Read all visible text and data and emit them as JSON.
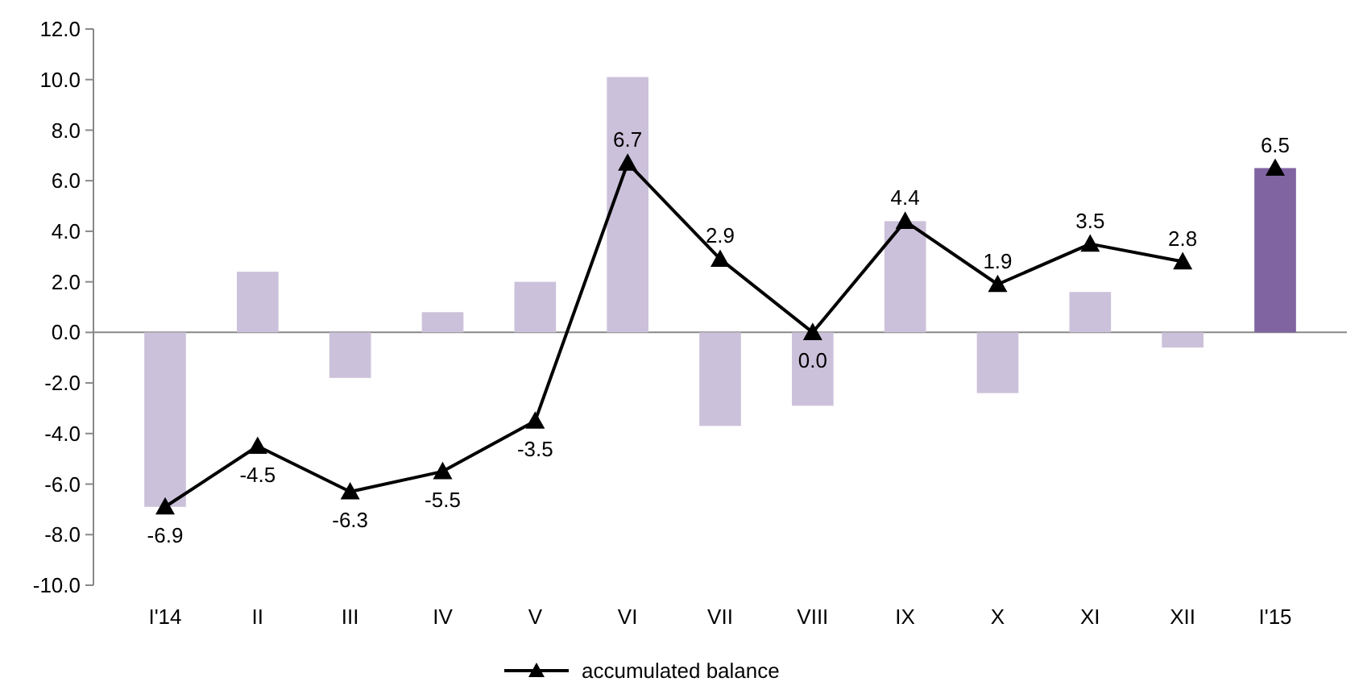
{
  "chart_data": {
    "type": "bar",
    "categories": [
      "I'14",
      "II",
      "III",
      "IV",
      "V",
      "VI",
      "VII",
      "VIII",
      "IX",
      "X",
      "XI",
      "XII",
      "I'15"
    ],
    "series": [
      {
        "colors": [
          "#ccc1da",
          "#ccc1da",
          "#ccc1da",
          "#ccc1da",
          "#ccc1da",
          "#ccc1da",
          "#ccc1da",
          "#ccc1da",
          "#ccc1da",
          "#ccc1da",
          "#ccc1da",
          "#ccc1da",
          "#8064a2"
        ],
        "values": [
          -6.9,
          2.4,
          -1.8,
          0.8,
          2.0,
          10.1,
          -3.7,
          -2.9,
          4.4,
          -2.4,
          1.6,
          -0.6,
          6.5
        ]
      },
      {
        "type": "line",
        "name": "accumulated balance",
        "color": "#000000",
        "marker": "triangle",
        "values": [
          -6.9,
          -4.5,
          -6.3,
          -5.5,
          -3.5,
          6.7,
          2.9,
          0.0,
          4.4,
          1.9,
          3.5,
          2.8,
          null
        ],
        "value_labels": [
          "-6.9",
          "-4.5",
          "-6.3",
          "-5.5",
          "-3.5",
          "6.7",
          "2.9",
          "0.0",
          "4.4",
          "1.9",
          "3.5",
          "2.8",
          null
        ]
      },
      {
        "type": "scatter",
        "color": "#000000",
        "marker": "triangle",
        "values": [
          null,
          null,
          null,
          null,
          null,
          null,
          null,
          null,
          null,
          null,
          null,
          null,
          6.5
        ],
        "value_labels": [
          null,
          null,
          null,
          null,
          null,
          null,
          null,
          null,
          null,
          null,
          null,
          null,
          "6.5"
        ]
      }
    ],
    "ylim": [
      -10,
      12
    ],
    "yticks": [
      {
        "value": -10,
        "label": "-10.0"
      },
      {
        "value": -8,
        "label": "-8.0"
      },
      {
        "value": -6,
        "label": "-6.0"
      },
      {
        "value": -4,
        "label": "-4.0"
      },
      {
        "value": -2,
        "label": "-2.0"
      },
      {
        "value": 0,
        "label": "0.0"
      },
      {
        "value": 2,
        "label": "2.0"
      },
      {
        "value": 4,
        "label": "4.0"
      },
      {
        "value": 6,
        "label": "6.0"
      },
      {
        "value": 8,
        "label": "8.0"
      },
      {
        "value": 10,
        "label": "10.0"
      },
      {
        "value": 12,
        "label": "12.0"
      }
    ],
    "legend": "bottom"
  }
}
